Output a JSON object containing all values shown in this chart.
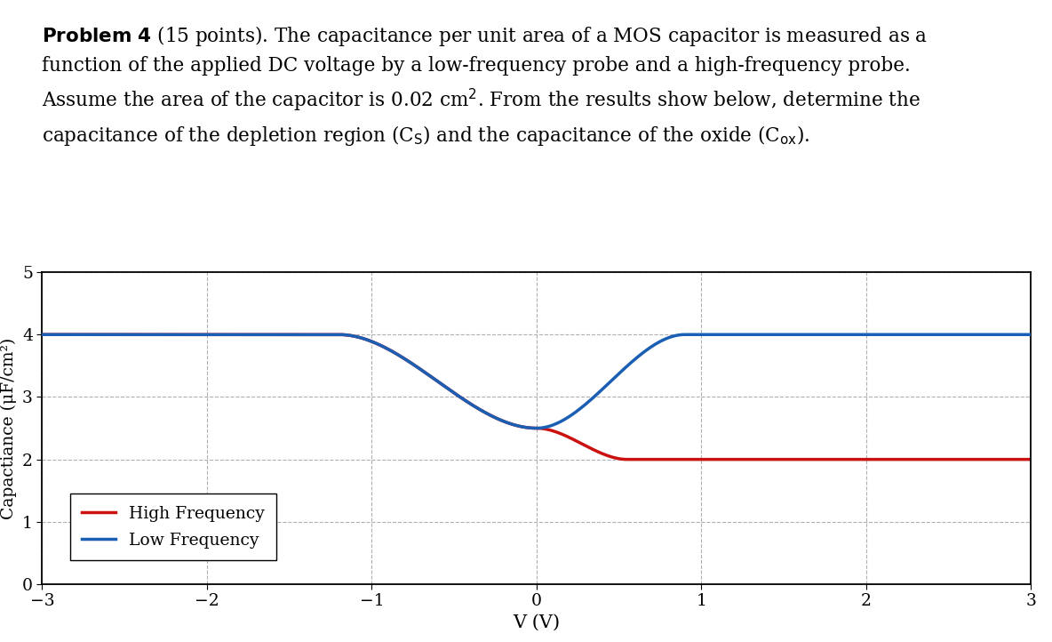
{
  "Cox": 4.0,
  "Cmin_hf": 2.0,
  "Cmin_lf": 2.5,
  "x_min": -3,
  "x_max": 3,
  "y_min": 0,
  "y_max": 5,
  "xlabel": "V (V)",
  "ylabel": "Capactiance (μF/cm²)",
  "hf_color": "#cc1111",
  "lf_color": "#1a5fb4",
  "background_color": "#ffffff",
  "grid_color": "#b0b0b0",
  "linewidth": 2.5,
  "legend_hf": "High Frequency",
  "legend_lf": "Low Frequency",
  "V_dep_start": -1.2,
  "V_bottom": 0.0,
  "V_inv_lf": 0.9,
  "V_inv_hf_end": 0.55,
  "title_bold": "Problem 4",
  "title_rest": " (15 points). The capacitance per unit area of a MOS capacitor is measured as a\nfunction of the applied DC voltage by a low-frequency probe and a high-frequency probe.\nAssume the area of the capacitor is 0.02 cm². From the results show below, determine the\ncapacitance of the depletion region (Cₛ) and the capacitance of the oxide (Cₒₓ)."
}
